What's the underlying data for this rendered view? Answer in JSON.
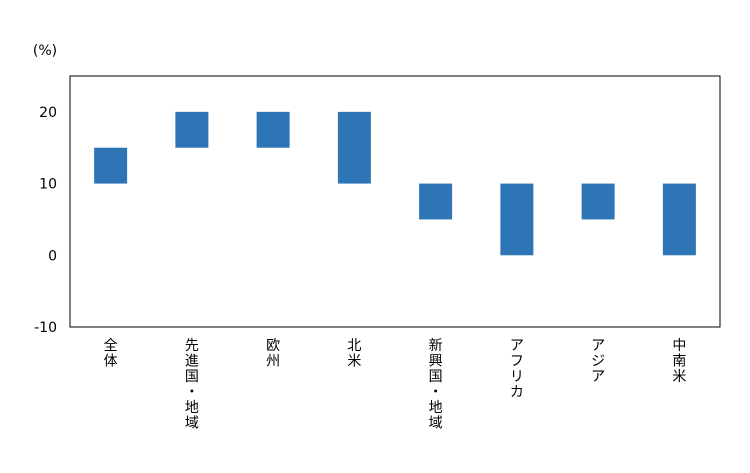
{
  "chart_data": {
    "type": "bar",
    "subtype": "floating-range",
    "unit_label": "(%)",
    "categories": [
      "全体",
      "先進国・地域",
      "欧州",
      "北米",
      "新興国・地域",
      "アフリカ",
      "アジア",
      "中南米"
    ],
    "ranges": [
      [
        10,
        15
      ],
      [
        15,
        20
      ],
      [
        15,
        20
      ],
      [
        10,
        20
      ],
      [
        5,
        10
      ],
      [
        0,
        10
      ],
      [
        5,
        10
      ],
      [
        0,
        10
      ]
    ],
    "ylim": [
      -10,
      25
    ],
    "yticks": [
      -10,
      0,
      10,
      20
    ],
    "grid": false,
    "legend": "none",
    "bar_color": "#2E75B6",
    "axis_color": "#000000"
  }
}
